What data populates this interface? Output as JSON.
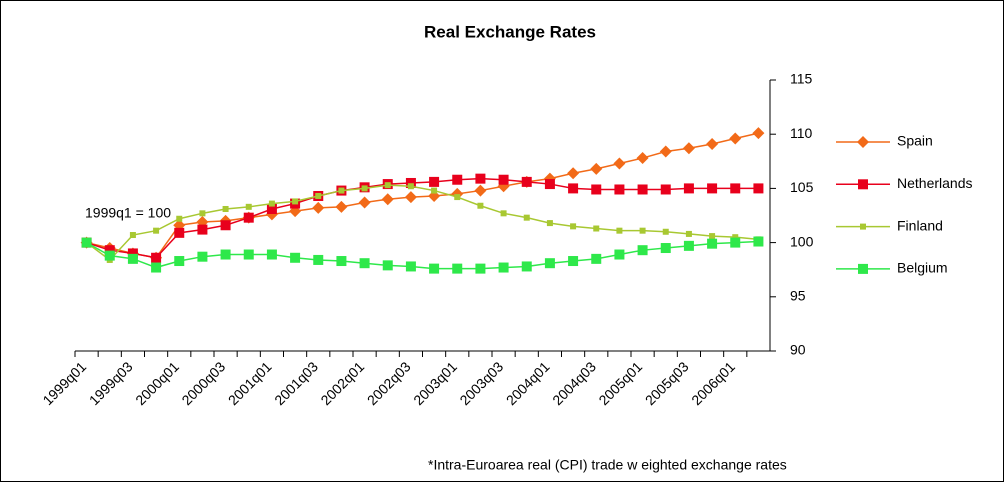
{
  "chart_data": {
    "type": "line",
    "title": "Real Exchange Rates",
    "annotation": "1999q1 = 100",
    "footnote": "*Intra-Euroarea real (CPI) trade w eighted exchange rates",
    "categories": [
      "1999q01",
      null,
      "1999q03",
      null,
      "2000q01",
      null,
      "2000q03",
      null,
      "2001q01",
      null,
      "2001q03",
      null,
      "2002q01",
      null,
      "2002q03",
      null,
      "2003q01",
      null,
      "2003q03",
      null,
      "2004q01",
      null,
      "2004q03",
      null,
      "2005q01",
      null,
      "2005q03",
      null,
      "2006q01",
      null
    ],
    "series": [
      {
        "name": "Spain",
        "color": "#f26a18",
        "marker": "diamond",
        "values": [
          100,
          99.5,
          99,
          98.6,
          101.6,
          101.9,
          102,
          102.3,
          102.6,
          102.9,
          103.2,
          103.3,
          103.7,
          104,
          104.2,
          104.3,
          104.5,
          104.8,
          105.2,
          105.6,
          105.9,
          106.4,
          106.8,
          107.3,
          107.8,
          108.4,
          108.7,
          109.1,
          109.6,
          110.1
        ]
      },
      {
        "name": "Netherlands",
        "color": "#e8001c",
        "marker": "square",
        "values": [
          100,
          99.3,
          99,
          98.6,
          100.9,
          101.2,
          101.6,
          102.3,
          103.1,
          103.6,
          104.3,
          104.8,
          105.1,
          105.4,
          105.5,
          105.6,
          105.8,
          105.9,
          105.8,
          105.6,
          105.4,
          105,
          104.9,
          104.9,
          104.9,
          104.9,
          105,
          105,
          105,
          105
        ]
      },
      {
        "name": "Finland",
        "color": "#a8c832",
        "marker": "small-square",
        "values": [
          100,
          98.4,
          100.7,
          101.1,
          102.2,
          102.7,
          103.1,
          103.3,
          103.6,
          103.8,
          104.3,
          104.8,
          105,
          105.3,
          105.2,
          104.8,
          104.2,
          103.4,
          102.7,
          102.3,
          101.8,
          101.5,
          101.3,
          101.1,
          101.1,
          101,
          100.8,
          100.6,
          100.5,
          100.3
        ]
      },
      {
        "name": "Belgium",
        "color": "#2ee84a",
        "marker": "square",
        "values": [
          100,
          98.8,
          98.5,
          97.7,
          98.3,
          98.7,
          98.9,
          98.9,
          98.9,
          98.6,
          98.4,
          98.3,
          98.1,
          97.9,
          97.8,
          97.6,
          97.6,
          97.6,
          97.7,
          97.8,
          98.1,
          98.3,
          98.5,
          98.9,
          99.3,
          99.5,
          99.7,
          99.9,
          100,
          100.1
        ]
      }
    ],
    "ylim": [
      90,
      115
    ],
    "yticks": [
      90,
      95,
      100,
      105,
      110,
      115
    ],
    "y_axis_side": "right",
    "grid": false
  }
}
